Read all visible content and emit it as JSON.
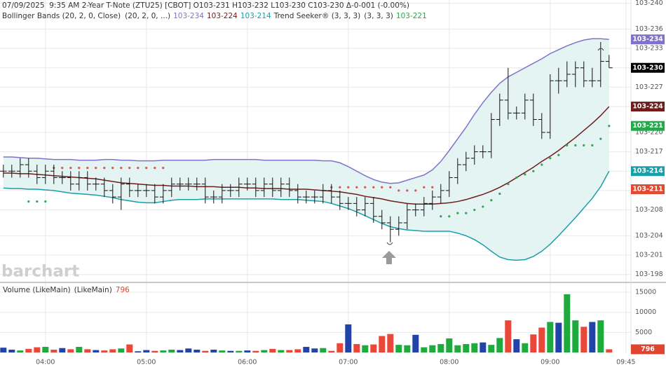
{
  "chart_data": {
    "type": "ohlc",
    "header": "07/09/2025  9:35 AM 2-Year T-Note (ZTU25) [CBOT] O103-231 H103-232 L103-230 C103-230 Δ-0-001 (-0.00%)",
    "watermark": "barchart",
    "x": [
      215,
      220,
      225,
      230,
      235,
      240,
      245,
      250,
      255,
      260,
      265,
      270,
      275,
      280,
      285,
      290,
      295,
      300,
      305,
      310,
      315,
      320,
      325,
      330,
      335,
      340,
      345,
      350,
      355,
      360,
      365,
      370,
      375,
      380,
      385,
      390,
      395,
      400,
      405,
      410,
      415,
      420,
      425,
      430,
      435,
      440,
      445,
      450,
      455,
      460,
      465,
      470,
      475,
      480,
      485,
      490,
      495,
      500,
      505,
      510,
      515,
      520,
      525,
      530,
      535,
      540,
      545,
      550,
      555,
      560,
      565,
      570,
      575
    ],
    "xlim": [
      213,
      588
    ],
    "xticks": [
      {
        "value": 240,
        "label": "04:00"
      },
      {
        "value": 300,
        "label": "05:00"
      },
      {
        "value": 360,
        "label": "06:00"
      },
      {
        "value": 420,
        "label": "07:00"
      },
      {
        "value": 480,
        "label": "08:00"
      },
      {
        "value": 540,
        "label": "09:00"
      },
      {
        "value": 585,
        "label": "09:45"
      }
    ],
    "ylim": [
      19.71,
      24.05
    ],
    "yticks": [
      {
        "value": 24.0,
        "label": "103-240"
      },
      {
        "value": 23.6,
        "label": "103-236"
      },
      {
        "value": 23.3,
        "label": "103-233"
      },
      {
        "value": 23.0,
        "label": "103-230"
      },
      {
        "value": 22.7,
        "label": "103-227"
      },
      {
        "value": 22.4,
        "label": "103-224"
      },
      {
        "value": 22.0,
        "label": "103-220"
      },
      {
        "value": 21.7,
        "label": "103-217"
      },
      {
        "value": 21.4,
        "label": "103-214"
      },
      {
        "value": 21.1,
        "label": "103-211"
      },
      {
        "value": 20.8,
        "label": "103-208"
      },
      {
        "value": 20.4,
        "label": "103-204"
      },
      {
        "value": 20.1,
        "label": "103-201"
      },
      {
        "value": 19.8,
        "label": "103-198"
      }
    ],
    "grid": true,
    "bar_color": "#111111",
    "open": [
      21.4,
      21.4,
      21.4,
      21.5,
      21.4,
      21.3,
      21.4,
      21.3,
      21.3,
      21.2,
      21.3,
      21.2,
      21.2,
      21.1,
      21.0,
      21.2,
      21.1,
      21.1,
      21.1,
      21.0,
      21.1,
      21.2,
      21.2,
      21.2,
      21.2,
      21.0,
      21.0,
      21.1,
      21.1,
      21.2,
      21.2,
      21.1,
      21.2,
      21.1,
      21.2,
      21.1,
      21.0,
      21.0,
      21.0,
      21.1,
      21.0,
      20.9,
      20.9,
      20.8,
      20.9,
      20.7,
      20.6,
      20.5,
      20.6,
      20.8,
      20.8,
      20.9,
      21.0,
      21.1,
      21.3,
      21.5,
      21.6,
      21.7,
      21.7,
      22.2,
      22.5,
      22.3,
      22.3,
      22.5,
      22.2,
      22.0,
      22.8,
      22.8,
      22.9,
      23.0,
      22.8,
      22.8,
      23.1
    ],
    "high": [
      21.5,
      21.5,
      21.6,
      21.6,
      21.5,
      21.5,
      21.5,
      21.4,
      21.4,
      21.4,
      21.4,
      21.3,
      21.3,
      21.2,
      21.3,
      21.3,
      21.2,
      21.2,
      21.2,
      21.2,
      21.3,
      21.3,
      21.3,
      21.3,
      21.3,
      21.1,
      21.2,
      21.2,
      21.3,
      21.3,
      21.3,
      21.3,
      21.3,
      21.3,
      21.3,
      21.2,
      21.1,
      21.1,
      21.2,
      21.2,
      21.1,
      21.0,
      21.0,
      21.0,
      21.0,
      20.8,
      20.7,
      20.7,
      20.9,
      20.9,
      21.0,
      21.1,
      21.2,
      21.4,
      21.6,
      21.7,
      21.8,
      21.8,
      22.3,
      22.6,
      23.0,
      22.4,
      22.6,
      22.6,
      22.3,
      22.9,
      23.0,
      23.1,
      23.1,
      23.1,
      23.0,
      23.4,
      23.2
    ],
    "low": [
      21.3,
      21.3,
      21.3,
      21.3,
      21.2,
      21.2,
      21.2,
      21.2,
      21.1,
      21.1,
      21.1,
      21.1,
      21.0,
      20.9,
      20.8,
      21.0,
      21.0,
      21.0,
      20.9,
      20.9,
      21.0,
      21.1,
      21.1,
      21.1,
      20.9,
      20.9,
      20.9,
      21.0,
      21.0,
      21.1,
      21.0,
      21.0,
      21.0,
      21.0,
      21.0,
      20.9,
      20.9,
      20.9,
      20.9,
      20.9,
      20.8,
      20.8,
      20.7,
      20.7,
      20.6,
      20.5,
      20.3,
      20.4,
      20.5,
      20.7,
      20.7,
      20.8,
      20.9,
      21.0,
      21.2,
      21.4,
      21.5,
      21.6,
      21.6,
      22.1,
      22.2,
      22.2,
      22.2,
      22.1,
      21.9,
      21.9,
      22.6,
      22.7,
      22.7,
      22.7,
      22.7,
      22.7,
      23.0
    ],
    "close": [
      21.4,
      21.4,
      21.5,
      21.4,
      21.3,
      21.4,
      21.3,
      21.3,
      21.2,
      21.3,
      21.2,
      21.2,
      21.1,
      21.0,
      21.2,
      21.1,
      21.1,
      21.1,
      21.0,
      21.1,
      21.2,
      21.2,
      21.2,
      21.2,
      21.0,
      21.0,
      21.1,
      21.1,
      21.2,
      21.2,
      21.1,
      21.2,
      21.1,
      21.2,
      21.1,
      21.0,
      21.0,
      21.0,
      21.1,
      21.0,
      20.9,
      20.9,
      20.8,
      20.9,
      20.7,
      20.6,
      20.5,
      20.6,
      20.8,
      20.8,
      20.9,
      21.0,
      21.1,
      21.3,
      21.5,
      21.6,
      21.7,
      21.7,
      22.2,
      22.5,
      22.3,
      22.3,
      22.5,
      22.2,
      22.0,
      22.8,
      22.8,
      22.9,
      23.0,
      22.8,
      22.8,
      23.1,
      23.0
    ],
    "close_label": "103-230",
    "close_label_color": "#000000",
    "bands": {
      "title": "Bollinger Bands (20, 2, 0, Close)",
      "params": "(20, 2, 0, ...)",
      "fill": "#e4f4f3",
      "series": [
        {
          "color": "#7f72c8",
          "value_label": "103-234",
          "values": [
            21.62,
            21.62,
            21.61,
            21.6,
            21.6,
            21.59,
            21.58,
            21.58,
            21.58,
            21.57,
            21.57,
            21.57,
            21.58,
            21.58,
            21.57,
            21.57,
            21.56,
            21.56,
            21.56,
            21.57,
            21.57,
            21.57,
            21.57,
            21.57,
            21.57,
            21.58,
            21.58,
            21.58,
            21.58,
            21.58,
            21.58,
            21.57,
            21.57,
            21.57,
            21.57,
            21.57,
            21.57,
            21.57,
            21.56,
            21.56,
            21.53,
            21.47,
            21.4,
            21.33,
            21.27,
            21.23,
            21.21,
            21.22,
            21.26,
            21.3,
            21.34,
            21.42,
            21.55,
            21.72,
            21.9,
            22.08,
            22.28,
            22.46,
            22.62,
            22.76,
            22.86,
            22.93,
            23.0,
            23.07,
            23.14,
            23.22,
            23.28,
            23.34,
            23.39,
            23.43,
            23.45,
            23.45,
            23.44
          ]
        },
        {
          "color": "#6e1c1c",
          "value_label": "103-224",
          "values": [
            21.37,
            21.37,
            21.36,
            21.36,
            21.35,
            21.34,
            21.33,
            21.32,
            21.31,
            21.3,
            21.29,
            21.28,
            21.26,
            21.24,
            21.22,
            21.21,
            21.2,
            21.19,
            21.18,
            21.18,
            21.17,
            21.17,
            21.17,
            21.16,
            21.16,
            21.16,
            21.15,
            21.15,
            21.15,
            21.14,
            21.14,
            21.13,
            21.13,
            21.13,
            21.12,
            21.12,
            21.12,
            21.11,
            21.1,
            21.09,
            21.08,
            21.06,
            21.04,
            21.01,
            20.99,
            20.97,
            20.94,
            20.92,
            20.9,
            20.89,
            20.89,
            20.89,
            20.9,
            20.91,
            20.93,
            20.96,
            21.0,
            21.04,
            21.09,
            21.15,
            21.22,
            21.3,
            21.38,
            21.46,
            21.55,
            21.63,
            21.72,
            21.82,
            21.92,
            22.03,
            22.14,
            22.26,
            22.4
          ]
        },
        {
          "color": "#1a9ea8",
          "value_label": "103-214",
          "values": [
            21.14,
            21.13,
            21.13,
            21.12,
            21.12,
            21.11,
            21.1,
            21.08,
            21.06,
            21.05,
            21.04,
            21.03,
            21.01,
            20.99,
            20.96,
            20.94,
            20.92,
            20.91,
            20.91,
            20.93,
            20.95,
            20.96,
            20.96,
            20.96,
            20.97,
            20.97,
            20.97,
            20.97,
            20.97,
            20.97,
            20.97,
            20.97,
            20.97,
            20.96,
            20.96,
            20.96,
            20.95,
            20.94,
            20.93,
            20.9,
            20.86,
            20.82,
            20.77,
            20.71,
            20.65,
            20.59,
            20.54,
            20.51,
            20.49,
            20.48,
            20.47,
            20.47,
            20.47,
            20.47,
            20.44,
            20.4,
            20.34,
            20.26,
            20.16,
            20.07,
            20.03,
            20.02,
            20.03,
            20.08,
            20.16,
            20.27,
            20.4,
            20.54,
            20.68,
            20.83,
            20.98,
            21.16,
            21.4
          ]
        }
      ]
    },
    "trend": {
      "title": "Trend Seeker® (3, 3, 3)",
      "params": "(3, 3, 3)",
      "values": [
        null,
        null,
        null,
        20.93,
        20.93,
        20.93,
        21.45,
        21.45,
        21.45,
        21.45,
        21.45,
        21.45,
        21.45,
        21.45,
        21.45,
        21.45,
        21.45,
        21.45,
        21.45,
        21.45,
        null,
        null,
        null,
        null,
        null,
        null,
        null,
        null,
        null,
        null,
        null,
        null,
        null,
        null,
        null,
        null,
        null,
        null,
        null,
        21.15,
        21.15,
        21.15,
        21.15,
        21.15,
        21.15,
        21.15,
        21.15,
        21.1,
        21.1,
        21.1,
        21.15,
        21.15,
        20.7,
        20.7,
        20.75,
        20.75,
        20.8,
        20.85,
        20.95,
        21.05,
        21.2,
        21.3,
        21.35,
        21.4,
        21.5,
        21.6,
        21.65,
        21.8,
        21.8,
        21.8,
        21.8,
        21.9,
        22.1
      ],
      "colors": [
        null,
        null,
        null,
        "#2ca64d",
        "#2ca64d",
        "#2ca64d",
        "#e0514a",
        "#e0514a",
        "#e0514a",
        "#e0514a",
        "#e0514a",
        "#e0514a",
        "#e0514a",
        "#e0514a",
        "#e0514a",
        "#e0514a",
        "#e0514a",
        "#e0514a",
        "#e0514a",
        "#e0514a",
        null,
        null,
        null,
        null,
        null,
        null,
        null,
        null,
        null,
        null,
        null,
        null,
        null,
        null,
        null,
        null,
        null,
        null,
        null,
        "#e0514a",
        "#e0514a",
        "#e0514a",
        "#e0514a",
        "#e0514a",
        "#e0514a",
        "#e0514a",
        "#e0514a",
        "#e0514a",
        "#e0514a",
        "#e0514a",
        "#e0514a",
        "#e0514a",
        "#2ca64d",
        "#2ca64d",
        "#2ca64d",
        "#2ca64d",
        "#2ca64d",
        "#2ca64d",
        "#2ca64d",
        "#2ca64d",
        "#2ca64d",
        "#2ca64d",
        "#2ca64d",
        "#2ca64d",
        "#2ca64d",
        "#2ca64d",
        "#2ca64d",
        "#2ca64d",
        "#2ca64d",
        "#2ca64d",
        "#2ca64d",
        "#2ca64d",
        "#2ca64d"
      ],
      "value_label": "103-221",
      "label_color": "#23a94c",
      "stop_value": 21.12,
      "stop_label": "103-211",
      "stop_color": "#e8472f"
    },
    "volume": {
      "title": "Volume (LikeMain)",
      "params": "(LikeMain)",
      "label_color": "#e0462f",
      "values": [
        1200,
        700,
        500,
        900,
        1300,
        1400,
        700,
        1100,
        800,
        1400,
        800,
        600,
        500,
        800,
        1000,
        2000,
        300,
        600,
        400,
        500,
        700,
        600,
        1000,
        700,
        400,
        700,
        500,
        400,
        400,
        500,
        400,
        600,
        900,
        600,
        600,
        800,
        1400,
        1000,
        1100,
        400,
        2300,
        7000,
        2100,
        1800,
        2000,
        4100,
        4600,
        1900,
        1800,
        4400,
        1300,
        1800,
        2100,
        3500,
        1800,
        2100,
        2300,
        2500,
        1900,
        3600,
        8000,
        3300,
        2300,
        4500,
        6200,
        7600,
        7400,
        14500,
        8000,
        6400,
        7600,
        8000,
        796
      ],
      "ylim": [
        0,
        17100
      ],
      "yticks": [
        5000,
        10000,
        15000
      ],
      "up_color": "#1fa93f",
      "down_color": "#e8473a",
      "flat_color": "#2343a8"
    }
  }
}
